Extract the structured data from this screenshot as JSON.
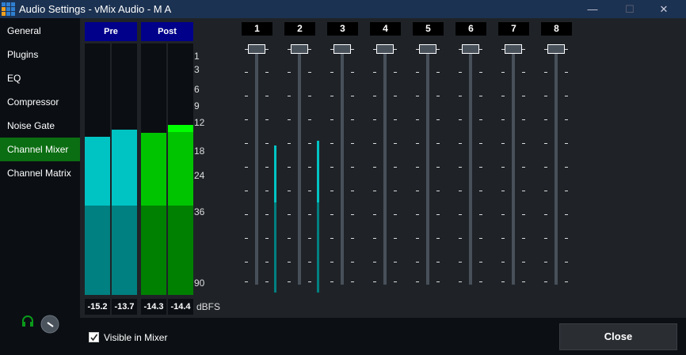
{
  "window": {
    "title": "Audio Settings - vMix Audio - M A",
    "minimize": "—",
    "maximize": "☐",
    "close": "✕"
  },
  "sidebar": {
    "items": [
      {
        "label": "General"
      },
      {
        "label": "Plugins"
      },
      {
        "label": "EQ"
      },
      {
        "label": "Compressor"
      },
      {
        "label": "Noise Gate"
      },
      {
        "label": "Channel Mixer",
        "active": true
      },
      {
        "label": "Channel Matrix"
      }
    ]
  },
  "meters": {
    "pre_label": "Pre",
    "post_label": "Post",
    "unit": "dBFS",
    "values": [
      "-15.2",
      "-13.7",
      "-14.3",
      "-14.4"
    ],
    "levels_db": [
      -15.2,
      -13.7,
      -14.3,
      -14.4
    ],
    "scale": [
      "1",
      "3",
      "6",
      "9",
      "12",
      "18",
      "24",
      "36",
      "90"
    ],
    "colors": {
      "pre": "#00c4c4",
      "pre_low": "#008080",
      "post": "#00c400",
      "post_low": "#008000",
      "peak": "#00ff00"
    }
  },
  "mixer": {
    "channels": [
      {
        "label": "1",
        "level": 0.62
      },
      {
        "label": "2",
        "level": 0.64
      },
      {
        "label": "3",
        "level": 0
      },
      {
        "label": "4",
        "level": 0
      },
      {
        "label": "5",
        "level": 0
      },
      {
        "label": "6",
        "level": 0
      },
      {
        "label": "7",
        "level": 0
      },
      {
        "label": "8",
        "level": 0
      }
    ]
  },
  "footer": {
    "visible_in_mixer": "Visible in Mixer",
    "visible_checked": true,
    "close": "Close"
  },
  "icons": {
    "app": "vmix-grid-icon",
    "headphones": "headphones-icon",
    "volume": "volume-knob-icon"
  }
}
